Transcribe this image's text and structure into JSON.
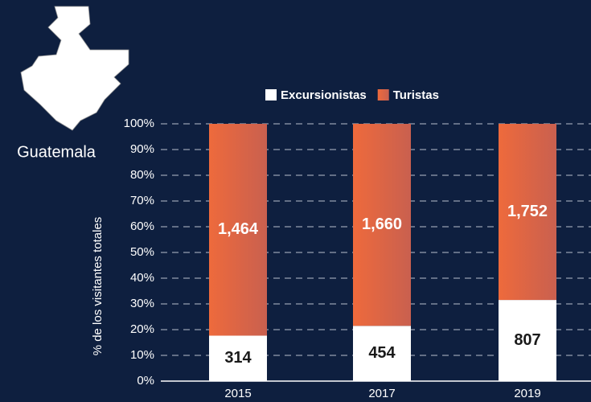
{
  "chart_data": {
    "type": "bar",
    "stacking": "percent",
    "map_label": "Guatemala",
    "y_label": "% de los visitantes totales",
    "categories": [
      "2015",
      "2017",
      "2019"
    ],
    "series": [
      {
        "name": "Excursionistas",
        "color": "#ffffff",
        "values": [
          314,
          454,
          807
        ],
        "value_labels": [
          "314",
          "454",
          "807"
        ]
      },
      {
        "name": "Turistas",
        "color": "#e8673f",
        "values": [
          1464,
          1660,
          1752
        ],
        "value_labels": [
          "1,464",
          "1,660",
          "1,752"
        ]
      }
    ],
    "ylim": [
      0,
      100
    ],
    "yticks": [
      {
        "value": 0,
        "label": "0%"
      },
      {
        "value": 10,
        "label": "10%"
      },
      {
        "value": 20,
        "label": "20%"
      },
      {
        "value": 30,
        "label": "30%"
      },
      {
        "value": 40,
        "label": "40%"
      },
      {
        "value": 50,
        "label": "50%"
      },
      {
        "value": 60,
        "label": "60%"
      },
      {
        "value": 70,
        "label": "70%"
      },
      {
        "value": 80,
        "label": "80%"
      },
      {
        "value": 90,
        "label": "90%"
      },
      {
        "value": 100,
        "label": "100%"
      }
    ],
    "grid": true,
    "legend": "top"
  }
}
